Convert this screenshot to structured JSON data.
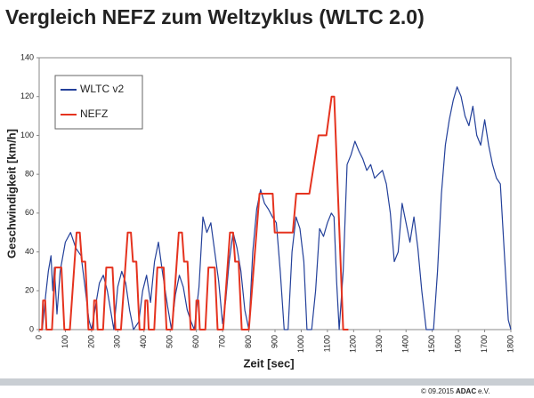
{
  "chart_data": {
    "type": "line",
    "title": "Vergleich NEFZ zum Weltzyklus (WLTC 2.0)",
    "x_label": "Zeit [sec]",
    "y_label": "Geschwindigkeit [km/h]",
    "xlim": [
      0,
      1800
    ],
    "ylim": [
      0,
      140
    ],
    "xticks": [
      0,
      100,
      200,
      300,
      400,
      500,
      600,
      700,
      800,
      900,
      1000,
      1100,
      1200,
      1300,
      1400,
      1500,
      1600,
      1700,
      1800
    ],
    "yticks": [
      0,
      20,
      40,
      60,
      80,
      100,
      120,
      140
    ],
    "grid": false,
    "legend": "upper-left",
    "series": [
      {
        "name": "WLTC v2",
        "color": "#23409a",
        "x": [
          0,
          12,
          25,
          35,
          45,
          52,
          58,
          68,
          80,
          100,
          120,
          140,
          160,
          175,
          190,
          200,
          215,
          230,
          245,
          260,
          275,
          285,
          300,
          315,
          330,
          345,
          360,
          380,
          395,
          410,
          425,
          440,
          455,
          470,
          490,
          505,
          520,
          535,
          550,
          565,
          580,
          592,
          610,
          625,
          640,
          655,
          670,
          685,
          700,
          712,
          725,
          740,
          755,
          770,
          785,
          800,
          815,
          830,
          845,
          860,
          875,
          890,
          905,
          920,
          935,
          950,
          965,
          980,
          995,
          1010,
          1022,
          1040,
          1055,
          1070,
          1085,
          1100,
          1115,
          1125,
          1135,
          1145,
          1160,
          1175,
          1190,
          1205,
          1220,
          1235,
          1250,
          1265,
          1280,
          1295,
          1310,
          1325,
          1340,
          1355,
          1370,
          1385,
          1400,
          1415,
          1430,
          1445,
          1460,
          1477,
          1490,
          1505,
          1520,
          1535,
          1550,
          1565,
          1580,
          1595,
          1610,
          1625,
          1640,
          1655,
          1670,
          1685,
          1700,
          1715,
          1730,
          1745,
          1760,
          1775,
          1790,
          1800
        ],
        "values": [
          0,
          0,
          18,
          30,
          38,
          20,
          32,
          8,
          30,
          45,
          50,
          42,
          38,
          22,
          5,
          0,
          12,
          24,
          28,
          20,
          8,
          0,
          22,
          30,
          24,
          10,
          0,
          4,
          20,
          28,
          14,
          35,
          45,
          30,
          12,
          0,
          18,
          28,
          22,
          10,
          4,
          0,
          22,
          58,
          50,
          55,
          40,
          25,
          3,
          15,
          35,
          50,
          42,
          30,
          10,
          0,
          40,
          62,
          72,
          65,
          62,
          58,
          55,
          30,
          0,
          0,
          40,
          58,
          52,
          35,
          0,
          0,
          20,
          52,
          48,
          55,
          60,
          58,
          25,
          0,
          30,
          85,
          90,
          97,
          92,
          88,
          82,
          85,
          78,
          80,
          82,
          75,
          60,
          35,
          40,
          65,
          55,
          45,
          58,
          42,
          20,
          0,
          0,
          0,
          30,
          70,
          95,
          108,
          118,
          125,
          120,
          110,
          105,
          115,
          100,
          95,
          108,
          95,
          85,
          78,
          75,
          40,
          5,
          0
        ]
      },
      {
        "name": "NEFZ",
        "color": "#e5331f",
        "x": [
          0,
          11,
          15,
          23,
          28,
          49,
          61,
          85,
          96,
          117,
          143,
          155,
          163,
          176,
          188,
          195,
          206,
          210,
          218,
          223,
          244,
          256,
          280,
          291,
          312,
          338,
          350,
          358,
          371,
          383,
          390,
          401,
          405,
          413,
          418,
          439,
          451,
          475,
          486,
          507,
          533,
          545,
          553,
          566,
          578,
          585,
          596,
          600,
          608,
          613,
          634,
          646,
          670,
          681,
          702,
          728,
          740,
          748,
          761,
          773,
          780,
          800,
          841,
          891,
          899,
          968,
          981,
          1031,
          1066,
          1096,
          1116,
          1126,
          1160,
          1180
        ],
        "values": [
          0,
          0,
          15,
          15,
          0,
          0,
          32,
          32,
          0,
          0,
          50,
          50,
          35,
          35,
          0,
          0,
          0,
          15,
          15,
          0,
          0,
          32,
          32,
          0,
          0,
          50,
          50,
          35,
          35,
          0,
          0,
          0,
          15,
          15,
          0,
          0,
          32,
          32,
          0,
          0,
          50,
          50,
          35,
          35,
          0,
          0,
          0,
          15,
          15,
          0,
          0,
          32,
          32,
          0,
          0,
          50,
          50,
          35,
          35,
          0,
          0,
          0,
          70,
          70,
          50,
          50,
          70,
          70,
          100,
          100,
          120,
          120,
          0,
          0
        ]
      }
    ]
  },
  "footer": {
    "date": "© 09.2015",
    "brand": "ADAC",
    "suffix": "e.V."
  }
}
